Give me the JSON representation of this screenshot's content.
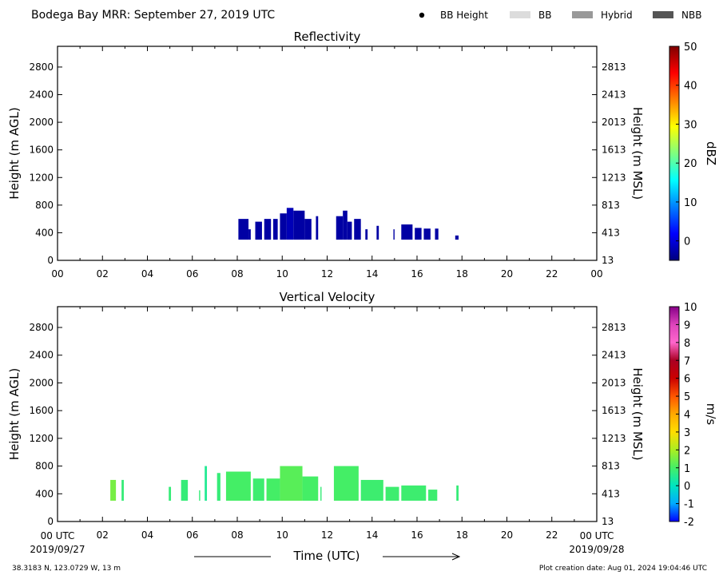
{
  "header": {
    "title": "Bodega Bay MRR:  September 27, 2019 UTC",
    "legend": [
      {
        "label": "BB Height",
        "kind": "dot",
        "color": "#000000"
      },
      {
        "label": "BB",
        "kind": "swatch",
        "color": "#dcdcdc"
      },
      {
        "label": "Hybrid",
        "kind": "swatch",
        "color": "#999999"
      },
      {
        "label": "NBB",
        "kind": "swatch",
        "color": "#555555"
      }
    ]
  },
  "footer": {
    "location": "38.3183 N, 123.0729 W, 13 m",
    "creation": "Plot creation date: Aug 01, 2024 19:04:46 UTC",
    "xlabel": "Time (UTC)",
    "start_label": "00 UTC",
    "start_date": "2019/09/27",
    "end_label": "00 UTC",
    "end_date": "2019/09/28"
  },
  "chart_data": [
    {
      "type": "heatmap",
      "title": "Reflectivity",
      "ylabel": "Height (m AGL)",
      "y2label": "Height (m MSL)",
      "xlim": [
        0,
        24
      ],
      "ylim": [
        0,
        3100
      ],
      "xticks": [
        "00",
        "02",
        "04",
        "06",
        "08",
        "10",
        "12",
        "14",
        "16",
        "18",
        "20",
        "22",
        "00"
      ],
      "yticks": [
        0,
        400,
        800,
        1200,
        1600,
        2000,
        2400,
        2800
      ],
      "y2ticks": [
        "13",
        "413",
        "813",
        "1213",
        "1613",
        "2013",
        "2413",
        "2813"
      ],
      "colorbar": {
        "label": "dBZ",
        "min": -5,
        "max": 50,
        "ticks": [
          0,
          10,
          20,
          30,
          40,
          50
        ],
        "stops": [
          "#00007f",
          "#0000ff",
          "#007fff",
          "#00ffff",
          "#7fff7f",
          "#ffff00",
          "#ff7f00",
          "#ff0000",
          "#7f0000"
        ]
      },
      "echoes": [
        {
          "t0": 8.05,
          "t1": 8.5,
          "top": 600,
          "value": -3
        },
        {
          "t0": 8.5,
          "t1": 8.6,
          "top": 450,
          "value": -3
        },
        {
          "t0": 8.8,
          "t1": 9.1,
          "top": 560,
          "value": -3
        },
        {
          "t0": 9.2,
          "t1": 9.5,
          "top": 600,
          "value": -3
        },
        {
          "t0": 9.6,
          "t1": 9.8,
          "top": 600,
          "value": -3
        },
        {
          "t0": 9.9,
          "t1": 10.2,
          "top": 680,
          "value": -3
        },
        {
          "t0": 10.2,
          "t1": 10.5,
          "top": 760,
          "value": -2
        },
        {
          "t0": 10.5,
          "t1": 11.0,
          "top": 720,
          "value": -3
        },
        {
          "t0": 11.0,
          "t1": 11.3,
          "top": 600,
          "value": -3
        },
        {
          "t0": 11.5,
          "t1": 11.6,
          "top": 640,
          "value": -3
        },
        {
          "t0": 12.4,
          "t1": 12.7,
          "top": 640,
          "value": -3
        },
        {
          "t0": 12.7,
          "t1": 12.9,
          "top": 720,
          "value": -3
        },
        {
          "t0": 12.9,
          "t1": 13.1,
          "top": 560,
          "value": -3
        },
        {
          "t0": 13.2,
          "t1": 13.5,
          "top": 600,
          "value": -3
        },
        {
          "t0": 13.7,
          "t1": 13.8,
          "top": 450,
          "value": -3
        },
        {
          "t0": 14.2,
          "t1": 14.3,
          "top": 500,
          "value": -3
        },
        {
          "t0": 14.95,
          "t1": 15.0,
          "top": 450,
          "value": -3
        },
        {
          "t0": 15.3,
          "t1": 15.8,
          "top": 520,
          "value": -3
        },
        {
          "t0": 15.9,
          "t1": 16.2,
          "top": 470,
          "value": -3
        },
        {
          "t0": 16.3,
          "t1": 16.6,
          "top": 460,
          "value": -3
        },
        {
          "t0": 16.8,
          "t1": 16.95,
          "top": 460,
          "value": -3
        },
        {
          "t0": 17.7,
          "t1": 17.85,
          "top": 360,
          "value": -3
        }
      ]
    },
    {
      "type": "heatmap",
      "title": "Vertical Velocity",
      "ylabel": "Height (m AGL)",
      "y2label": "Height (m MSL)",
      "xlim": [
        0,
        24
      ],
      "ylim": [
        0,
        3100
      ],
      "xticks": [
        "00",
        "02",
        "04",
        "06",
        "08",
        "10",
        "12",
        "14",
        "16",
        "18",
        "20",
        "22",
        "00"
      ],
      "yticks": [
        0,
        400,
        800,
        1200,
        1600,
        2000,
        2400,
        2800
      ],
      "y2ticks": [
        "13",
        "413",
        "813",
        "1213",
        "1613",
        "2013",
        "2413",
        "2813"
      ],
      "colorbar": {
        "label": "m/s",
        "min": -2,
        "max": 10,
        "ticks": [
          -2,
          -1,
          0,
          1,
          2,
          3,
          4,
          5,
          6,
          7,
          8,
          9,
          10
        ],
        "stops": [
          "#0000ff",
          "#00aaff",
          "#00e5c0",
          "#44ee66",
          "#aaee22",
          "#ffdd00",
          "#ffaa00",
          "#ff5500",
          "#cc0000",
          "#aa0022",
          "#ff66cc",
          "#dd44bb",
          "#880088"
        ]
      },
      "echoes": [
        {
          "t0": 2.35,
          "t1": 2.6,
          "top": 600,
          "value": 1.5
        },
        {
          "t0": 2.85,
          "t1": 2.95,
          "top": 600,
          "value": 0.8
        },
        {
          "t0": 4.95,
          "t1": 5.05,
          "top": 500,
          "value": 0.8
        },
        {
          "t0": 5.5,
          "t1": 5.8,
          "top": 600,
          "value": 0.8
        },
        {
          "t0": 6.3,
          "t1": 6.35,
          "top": 450,
          "value": 0.8
        },
        {
          "t0": 6.55,
          "t1": 6.65,
          "top": 800,
          "value": 0.5
        },
        {
          "t0": 7.1,
          "t1": 7.25,
          "top": 700,
          "value": 0.8
        },
        {
          "t0": 7.5,
          "t1": 8.6,
          "top": 720,
          "value": 1.0
        },
        {
          "t0": 8.7,
          "t1": 9.2,
          "top": 620,
          "value": 0.9
        },
        {
          "t0": 9.3,
          "t1": 9.9,
          "top": 620,
          "value": 1.0
        },
        {
          "t0": 9.9,
          "t1": 10.9,
          "top": 800,
          "value": 1.2
        },
        {
          "t0": 10.9,
          "t1": 11.6,
          "top": 650,
          "value": 1.0
        },
        {
          "t0": 11.7,
          "t1": 11.75,
          "top": 500,
          "value": 0.8
        },
        {
          "t0": 12.3,
          "t1": 13.4,
          "top": 800,
          "value": 1.0
        },
        {
          "t0": 13.5,
          "t1": 14.5,
          "top": 600,
          "value": 0.9
        },
        {
          "t0": 14.6,
          "t1": 15.2,
          "top": 500,
          "value": 0.9
        },
        {
          "t0": 15.3,
          "t1": 16.4,
          "top": 520,
          "value": 0.9
        },
        {
          "t0": 16.5,
          "t1": 16.9,
          "top": 460,
          "value": 0.9
        },
        {
          "t0": 17.75,
          "t1": 17.85,
          "top": 520,
          "value": 0.8
        }
      ]
    }
  ]
}
